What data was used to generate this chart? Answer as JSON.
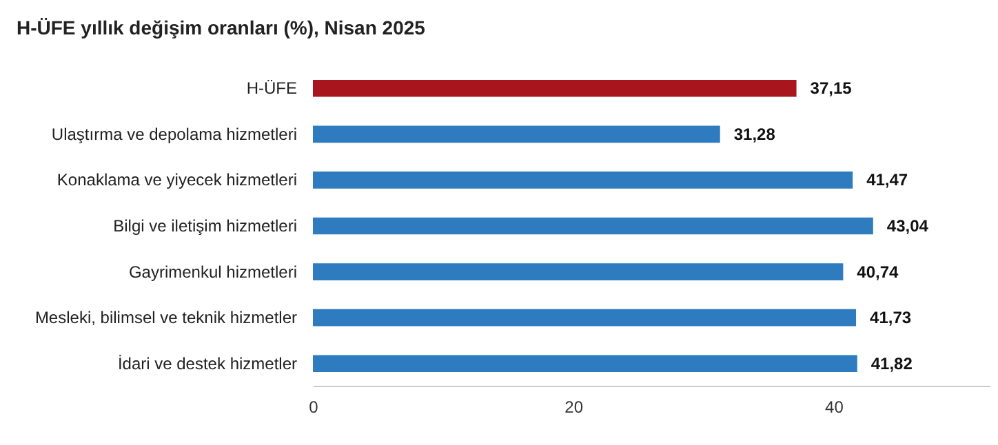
{
  "chart_data": {
    "type": "bar",
    "orientation": "horizontal",
    "title": "H-ÜFE yıllık değişim oranları (%), Nisan 2025",
    "categories": [
      "H-ÜFE",
      "Ulaştırma ve depolama hizmetleri",
      "Konaklama ve yiyecek hizmetleri",
      "Bilgi ve iletişim hizmetleri",
      "Gayrimenkul hizmetleri",
      "Mesleki, bilimsel ve teknik hizmetler",
      "İdari ve destek hizmetler"
    ],
    "values": [
      37.15,
      31.28,
      41.47,
      43.04,
      40.74,
      41.73,
      41.82
    ],
    "colors": [
      "#a8151c",
      "#2e7bbf",
      "#2e7bbf",
      "#2e7bbf",
      "#2e7bbf",
      "#2e7bbf",
      "#2e7bbf"
    ],
    "value_labels": [
      "37,15",
      "31,28",
      "41,47",
      "43,04",
      "40,74",
      "41,73",
      "41,82"
    ],
    "xlim": [
      0,
      52
    ],
    "xticks": [
      0,
      20,
      40
    ],
    "grid": false
  }
}
